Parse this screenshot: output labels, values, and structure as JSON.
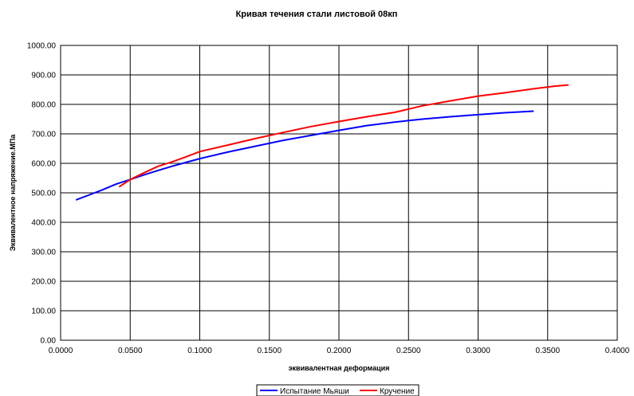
{
  "chart_data": {
    "type": "line",
    "title": "Кривая течения стали листовой 08кп",
    "xlabel": "эквивалентная деформация",
    "ylabel": "Эквивалентное напряжение.МПа",
    "xlim": [
      0,
      0.4
    ],
    "ylim": [
      0,
      1000
    ],
    "x_ticks": [
      "0.0000",
      "0.0500",
      "0.1000",
      "0.1500",
      "0.2000",
      "0.2500",
      "0.3000",
      "0.3500",
      "0.4000"
    ],
    "y_ticks": [
      "0.00",
      "100.00",
      "200.00",
      "300.00",
      "400.00",
      "500.00",
      "600.00",
      "700.00",
      "800.00",
      "900.00",
      "1000.00"
    ],
    "grid": true,
    "legend_position": "bottom",
    "series": [
      {
        "name": "Испытание Мьяши",
        "color": "#0000ff",
        "x": [
          0.011,
          0.02,
          0.03,
          0.04,
          0.05,
          0.06,
          0.07,
          0.08,
          0.09,
          0.1,
          0.12,
          0.14,
          0.16,
          0.18,
          0.2,
          0.22,
          0.24,
          0.26,
          0.28,
          0.3,
          0.32,
          0.34
        ],
        "y": [
          476,
          492,
          510,
          530,
          545,
          561,
          576,
          590,
          603,
          616,
          638,
          658,
          678,
          695,
          712,
          728,
          740,
          750,
          758,
          765,
          772,
          777
        ]
      },
      {
        "name": "Кручение",
        "color": "#ff0000",
        "x": [
          0.042,
          0.05,
          0.06,
          0.07,
          0.08,
          0.09,
          0.1,
          0.12,
          0.14,
          0.16,
          0.18,
          0.2,
          0.22,
          0.24,
          0.26,
          0.28,
          0.3,
          0.32,
          0.34,
          0.355,
          0.365
        ],
        "y": [
          520,
          545,
          568,
          590,
          605,
          622,
          640,
          662,
          684,
          705,
          725,
          742,
          758,
          773,
          795,
          812,
          828,
          840,
          853,
          862,
          866
        ]
      }
    ]
  }
}
